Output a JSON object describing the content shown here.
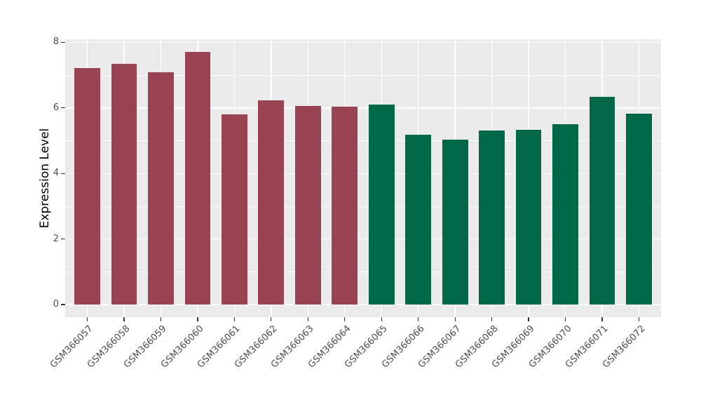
{
  "chart_data": {
    "type": "bar",
    "title": "",
    "xlabel": "",
    "ylabel": "Expression Level",
    "categories": [
      "GSM366057",
      "GSM366058",
      "GSM366059",
      "GSM366060",
      "GSM366061",
      "GSM366062",
      "GSM366063",
      "GSM366064",
      "GSM366065",
      "GSM366066",
      "GSM366067",
      "GSM366068",
      "GSM366069",
      "GSM366070",
      "GSM366071",
      "GSM366072"
    ],
    "values": [
      7.22,
      7.35,
      7.08,
      7.71,
      5.8,
      6.23,
      6.06,
      6.04,
      6.1,
      5.19,
      5.04,
      5.32,
      5.34,
      5.51,
      6.33,
      5.83
    ],
    "bar_colors": [
      "#9A4353",
      "#9A4353",
      "#9A4353",
      "#9A4353",
      "#9A4353",
      "#9A4353",
      "#9A4353",
      "#9A4353",
      "#006747",
      "#006747",
      "#006747",
      "#006747",
      "#006747",
      "#006747",
      "#006747",
      "#006747"
    ],
    "groups": [
      {
        "name": "group-1",
        "color": "#9A4353",
        "first": "GSM366057",
        "last": "GSM366064"
      },
      {
        "name": "group-2",
        "color": "#006747",
        "first": "GSM366065",
        "last": "GSM366072"
      }
    ],
    "yticks": [
      0,
      2,
      4,
      6,
      8
    ],
    "ylim": [
      0,
      8
    ],
    "grid": true,
    "legend_position": "none",
    "panel_bg": "#EBEBEB",
    "grid_color": "#FFFFFF",
    "tick_color": "#333333",
    "tick_label_color": "#4D4D4D",
    "axis_title_color": "#000000"
  }
}
